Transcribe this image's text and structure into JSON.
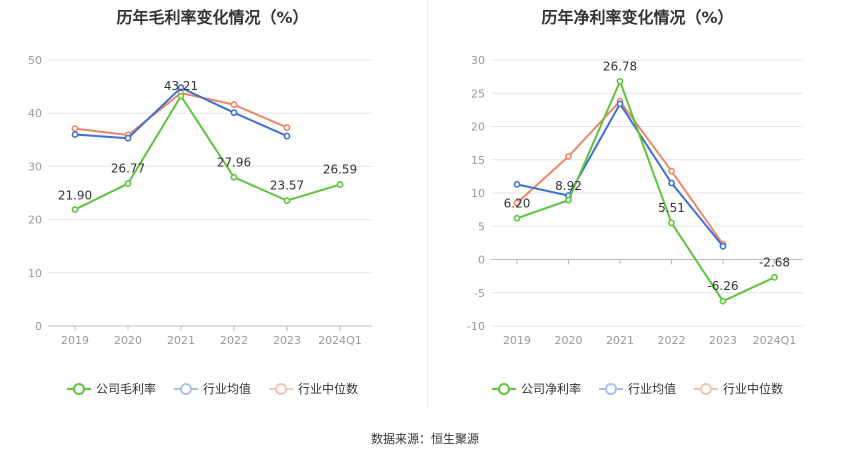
{
  "colors": {
    "company": "#5cc43a",
    "avg": "#3d6fd6",
    "median": "#f08566",
    "grid": "#e6e6e6",
    "axis_text": "#999999",
    "label_text": "#333333"
  },
  "legend": {
    "left": [
      "公司毛利率",
      "行业均值",
      "行业中位数"
    ],
    "right": [
      "公司净利率",
      "行业均值",
      "行业中位数"
    ]
  },
  "source": "数据来源：恒生聚源",
  "chart_data": [
    {
      "type": "line",
      "title": "历年毛利率变化情况（%）",
      "categories": [
        "2019",
        "2020",
        "2021",
        "2022",
        "2023",
        "2024Q1"
      ],
      "ylim": [
        0,
        50
      ],
      "yticks": [
        0,
        10,
        20,
        30,
        40,
        50
      ],
      "grid": true,
      "legend_position": "bottom",
      "series": [
        {
          "name": "公司毛利率",
          "color": "#5cc43a",
          "values": [
            21.9,
            26.77,
            43.21,
            27.96,
            23.57,
            26.59
          ],
          "labels": [
            "21.90",
            "26.77",
            "43.21",
            "27.96",
            "23.57",
            "26.59"
          ]
        },
        {
          "name": "行业均值",
          "color": "#3d6fd6",
          "values": [
            36.0,
            35.3,
            44.8,
            40.1,
            35.7,
            null
          ]
        },
        {
          "name": "行业中位数",
          "color": "#f08566",
          "values": [
            37.1,
            35.9,
            43.8,
            41.6,
            37.3,
            null
          ]
        }
      ]
    },
    {
      "type": "line",
      "title": "历年净利率变化情况（%）",
      "categories": [
        "2019",
        "2020",
        "2021",
        "2022",
        "2023",
        "2024Q1"
      ],
      "ylim": [
        -10,
        30
      ],
      "yticks": [
        -10,
        -5,
        0,
        5,
        10,
        15,
        20,
        25,
        30
      ],
      "grid": true,
      "legend_position": "bottom",
      "series": [
        {
          "name": "公司净利率",
          "color": "#5cc43a",
          "values": [
            6.2,
            8.92,
            26.78,
            5.51,
            -6.26,
            -2.68
          ],
          "labels": [
            "6.20",
            "8.92",
            "26.78",
            "5.51",
            "-6.26",
            "-2.68"
          ]
        },
        {
          "name": "行业均值",
          "color": "#3d6fd6",
          "values": [
            11.3,
            9.6,
            23.4,
            11.5,
            2.0,
            null
          ]
        },
        {
          "name": "行业中位数",
          "color": "#f08566",
          "values": [
            8.5,
            15.5,
            23.8,
            13.3,
            2.3,
            null
          ]
        }
      ]
    }
  ]
}
